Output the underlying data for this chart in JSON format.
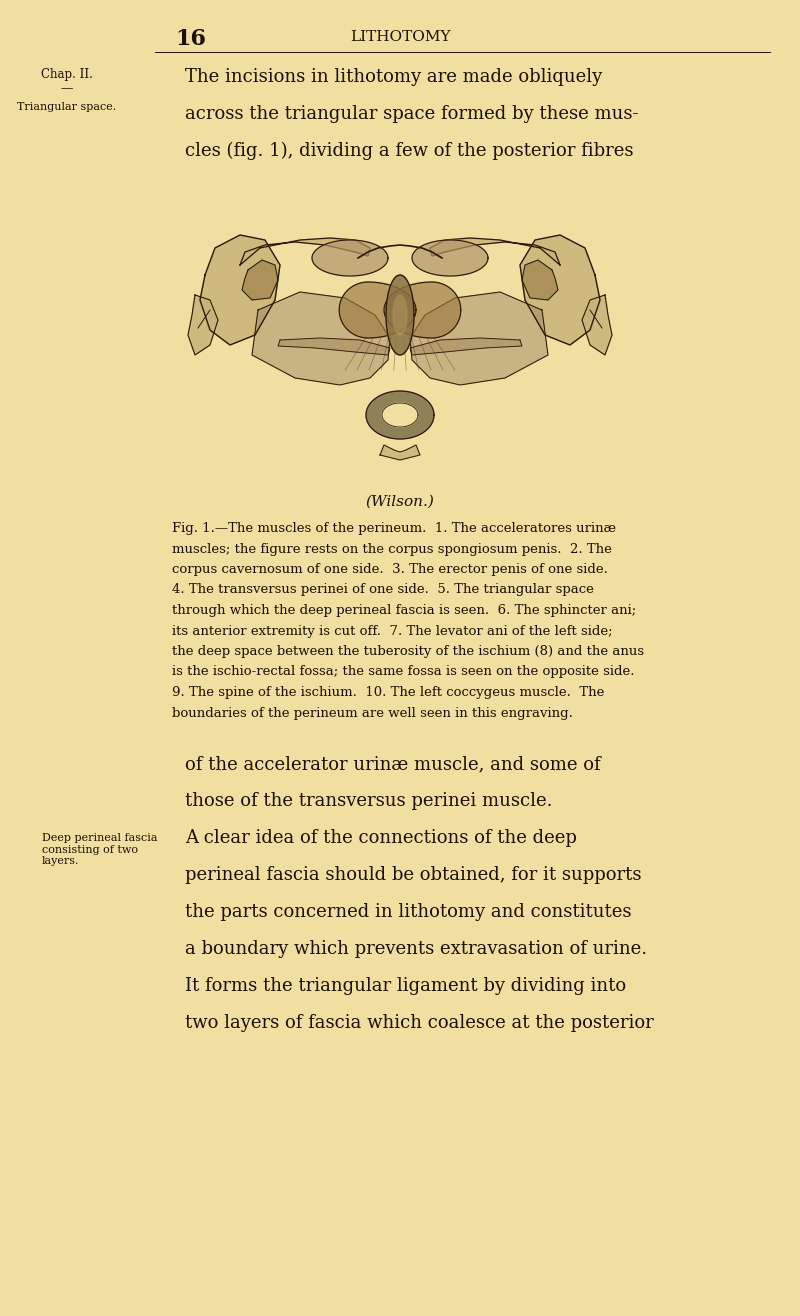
{
  "bg_color": "#f0dfa0",
  "text_color": "#1a0f00",
  "page_number": "16",
  "page_title": "LITHOTOMY",
  "chap_label": "Chap. II.",
  "margin_note_1": "Triangular space.",
  "margin_note_2": "Deep perineal fascia\nconsisting of two\nlayers.",
  "intro_line1": "The incisions in lithotomy are made obliquely",
  "intro_line2": "across the triangular space formed by these mus-",
  "intro_line3": "cles (fig. 1), dividing a few of the posterior fibres",
  "wilson_credit": "(Wilson.)",
  "fig_caption_line0": "Fig. 1.—The muscles of the perineum.  1. The acceleratores urinæ",
  "fig_caption_lines": [
    "muscles; the figure rests on the corpus spongiosum penis.  2. The",
    "corpus cavernosum of one side.  3. The erector penis of one side.",
    "4. The transversus perinei of one side.  5. The triangular space",
    "through which the deep perineal fascia is seen.  6. The sphincter ani;",
    "its anterior extremity is cut off.  7. The levator ani of the left side;",
    "the deep space between the tuberosity of the ischium (8) and the anus",
    "is the ischio-rectal fossa; the same fossa is seen on the opposite side.",
    "9. The spine of the ischium.  10. The left coccygeus muscle.  The",
    "boundaries of the perineum are well seen in this engraving."
  ],
  "para1_line1": "of the accelerator urinæ muscle, and some of",
  "para1_line2": "those of the transversus perinei muscle.",
  "para2_lines": [
    "A clear idea of the connections of the deep",
    "perineal fascia should be obtained, for it supports",
    "the parts concerned in lithotomy and constitutes",
    "a boundary which prevents extravasation of urine.",
    "It forms the triangular ligament by dividing into",
    "two layers of fascia which coalesce at the posterior"
  ]
}
